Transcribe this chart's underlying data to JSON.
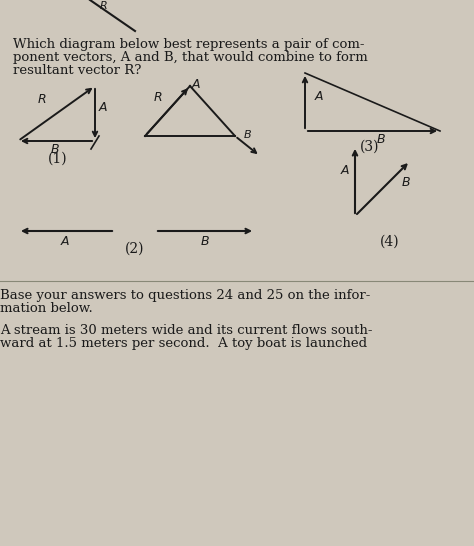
{
  "bg_color": "#cfc8bc",
  "text_color": "#1a1a1a",
  "title_line1": "Which diagram below best represents a pair of com-",
  "title_line2": "ponent vectors, A and B, that would combine to form",
  "title_line3": "resultant vector R?",
  "bottom_line1": "Base your answers to questions 24 and 25 on the infor-",
  "bottom_line2": "mation below.",
  "bottom_line3": "A stream is 30 meters wide and its current flows south-",
  "bottom_line4": "ward at 1.5 meters per second.  A toy boat is launched",
  "label_1": "(1)",
  "label_2": "(2)",
  "label_3": "(3)",
  "label_4": "(4)",
  "font_size_body": 9.5,
  "font_size_label": 10,
  "font_size_vector": 9
}
